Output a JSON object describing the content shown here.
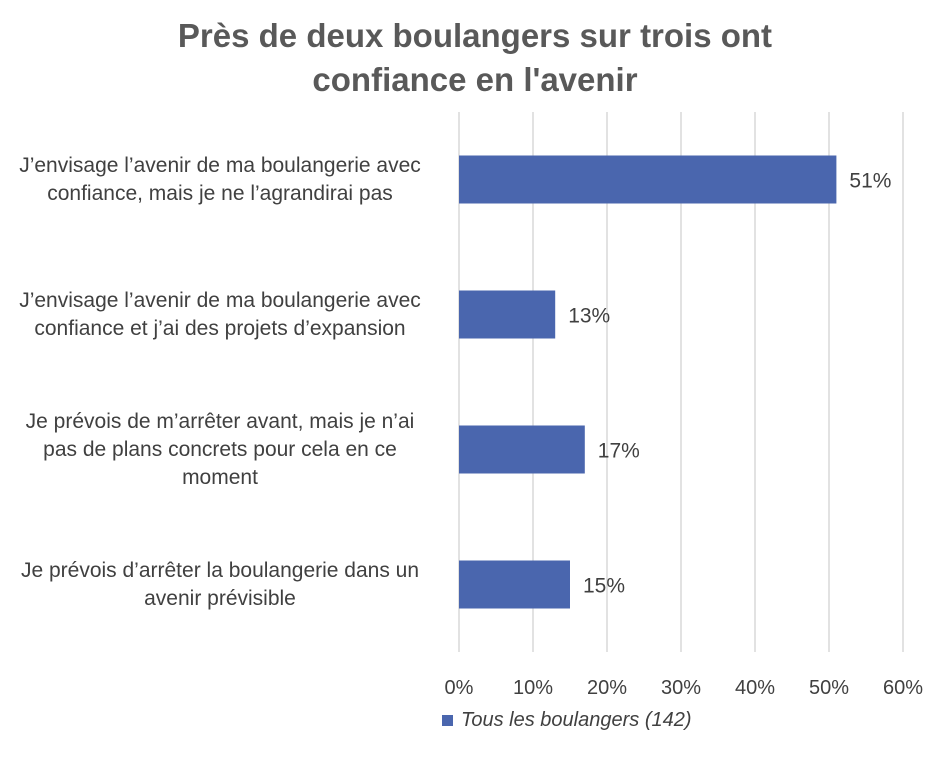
{
  "chart_data": {
    "type": "bar",
    "orientation": "horizontal",
    "title_lines": [
      "Près de deux boulangers sur trois ont",
      "confiance en l'avenir"
    ],
    "categories": [
      [
        "J’envisage l’avenir de ma boulangerie avec",
        "confiance, mais je ne l’agrandirai pas"
      ],
      [
        "J’envisage l’avenir de ma boulangerie avec",
        "confiance et j’ai des projets d’expansion"
      ],
      [
        "Je prévois de m’arrêter avant, mais je n’ai",
        "pas de plans concrets pour cela en ce",
        "moment"
      ],
      [
        "Je prévois d’arrêter la boulangerie dans un",
        "avenir prévisible"
      ]
    ],
    "series": [
      {
        "name": "Tous les boulangers (142)",
        "values": [
          51,
          13,
          17,
          15
        ],
        "data_labels": [
          "51%",
          "13%",
          "17%",
          "15%"
        ],
        "color": "#4a66ae"
      }
    ],
    "xlim": [
      0,
      60
    ],
    "xticks": [
      0,
      10,
      20,
      30,
      40,
      50,
      60
    ],
    "xtick_labels": [
      "0%",
      "10%",
      "20%",
      "30%",
      "40%",
      "50%",
      "60%"
    ],
    "grid": true,
    "gridline_color": "#d9d9d9",
    "legend_position": "bottom"
  }
}
